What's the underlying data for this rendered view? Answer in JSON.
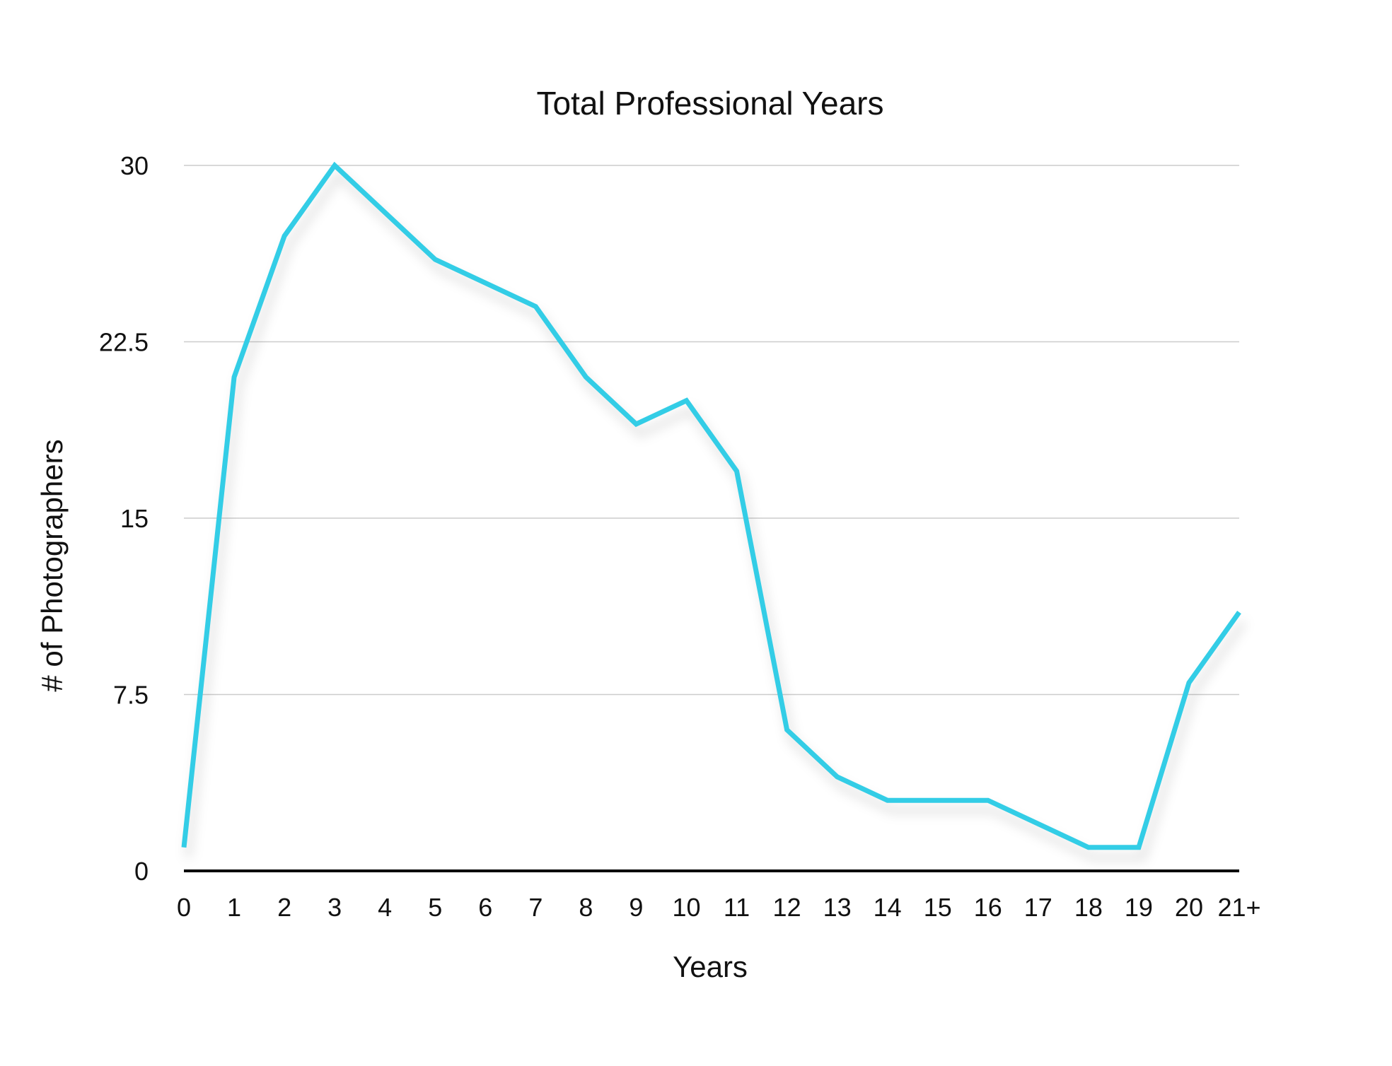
{
  "chart_data": {
    "type": "line",
    "title": "Total Professional Years",
    "xlabel": "Years",
    "ylabel": "# of Photographers",
    "categories": [
      "0",
      "1",
      "2",
      "3",
      "4",
      "5",
      "6",
      "7",
      "8",
      "9",
      "10",
      "11",
      "12",
      "13",
      "14",
      "15",
      "16",
      "17",
      "18",
      "19",
      "20",
      "21+"
    ],
    "series": [
      {
        "values": [
          1,
          21,
          27,
          30,
          28,
          26,
          25,
          24,
          21,
          19,
          20,
          17,
          6,
          4,
          3,
          3,
          3,
          2,
          1,
          1,
          8,
          11
        ]
      }
    ],
    "yticks": [
      "0",
      "7.5",
      "15",
      "22.5",
      "30"
    ],
    "ylim": [
      0,
      30
    ],
    "grid": true,
    "legend": "none",
    "colors": {
      "series": "#33cde6",
      "grid": "#cccccc",
      "baseline": "#000000",
      "text": "#111111"
    }
  }
}
